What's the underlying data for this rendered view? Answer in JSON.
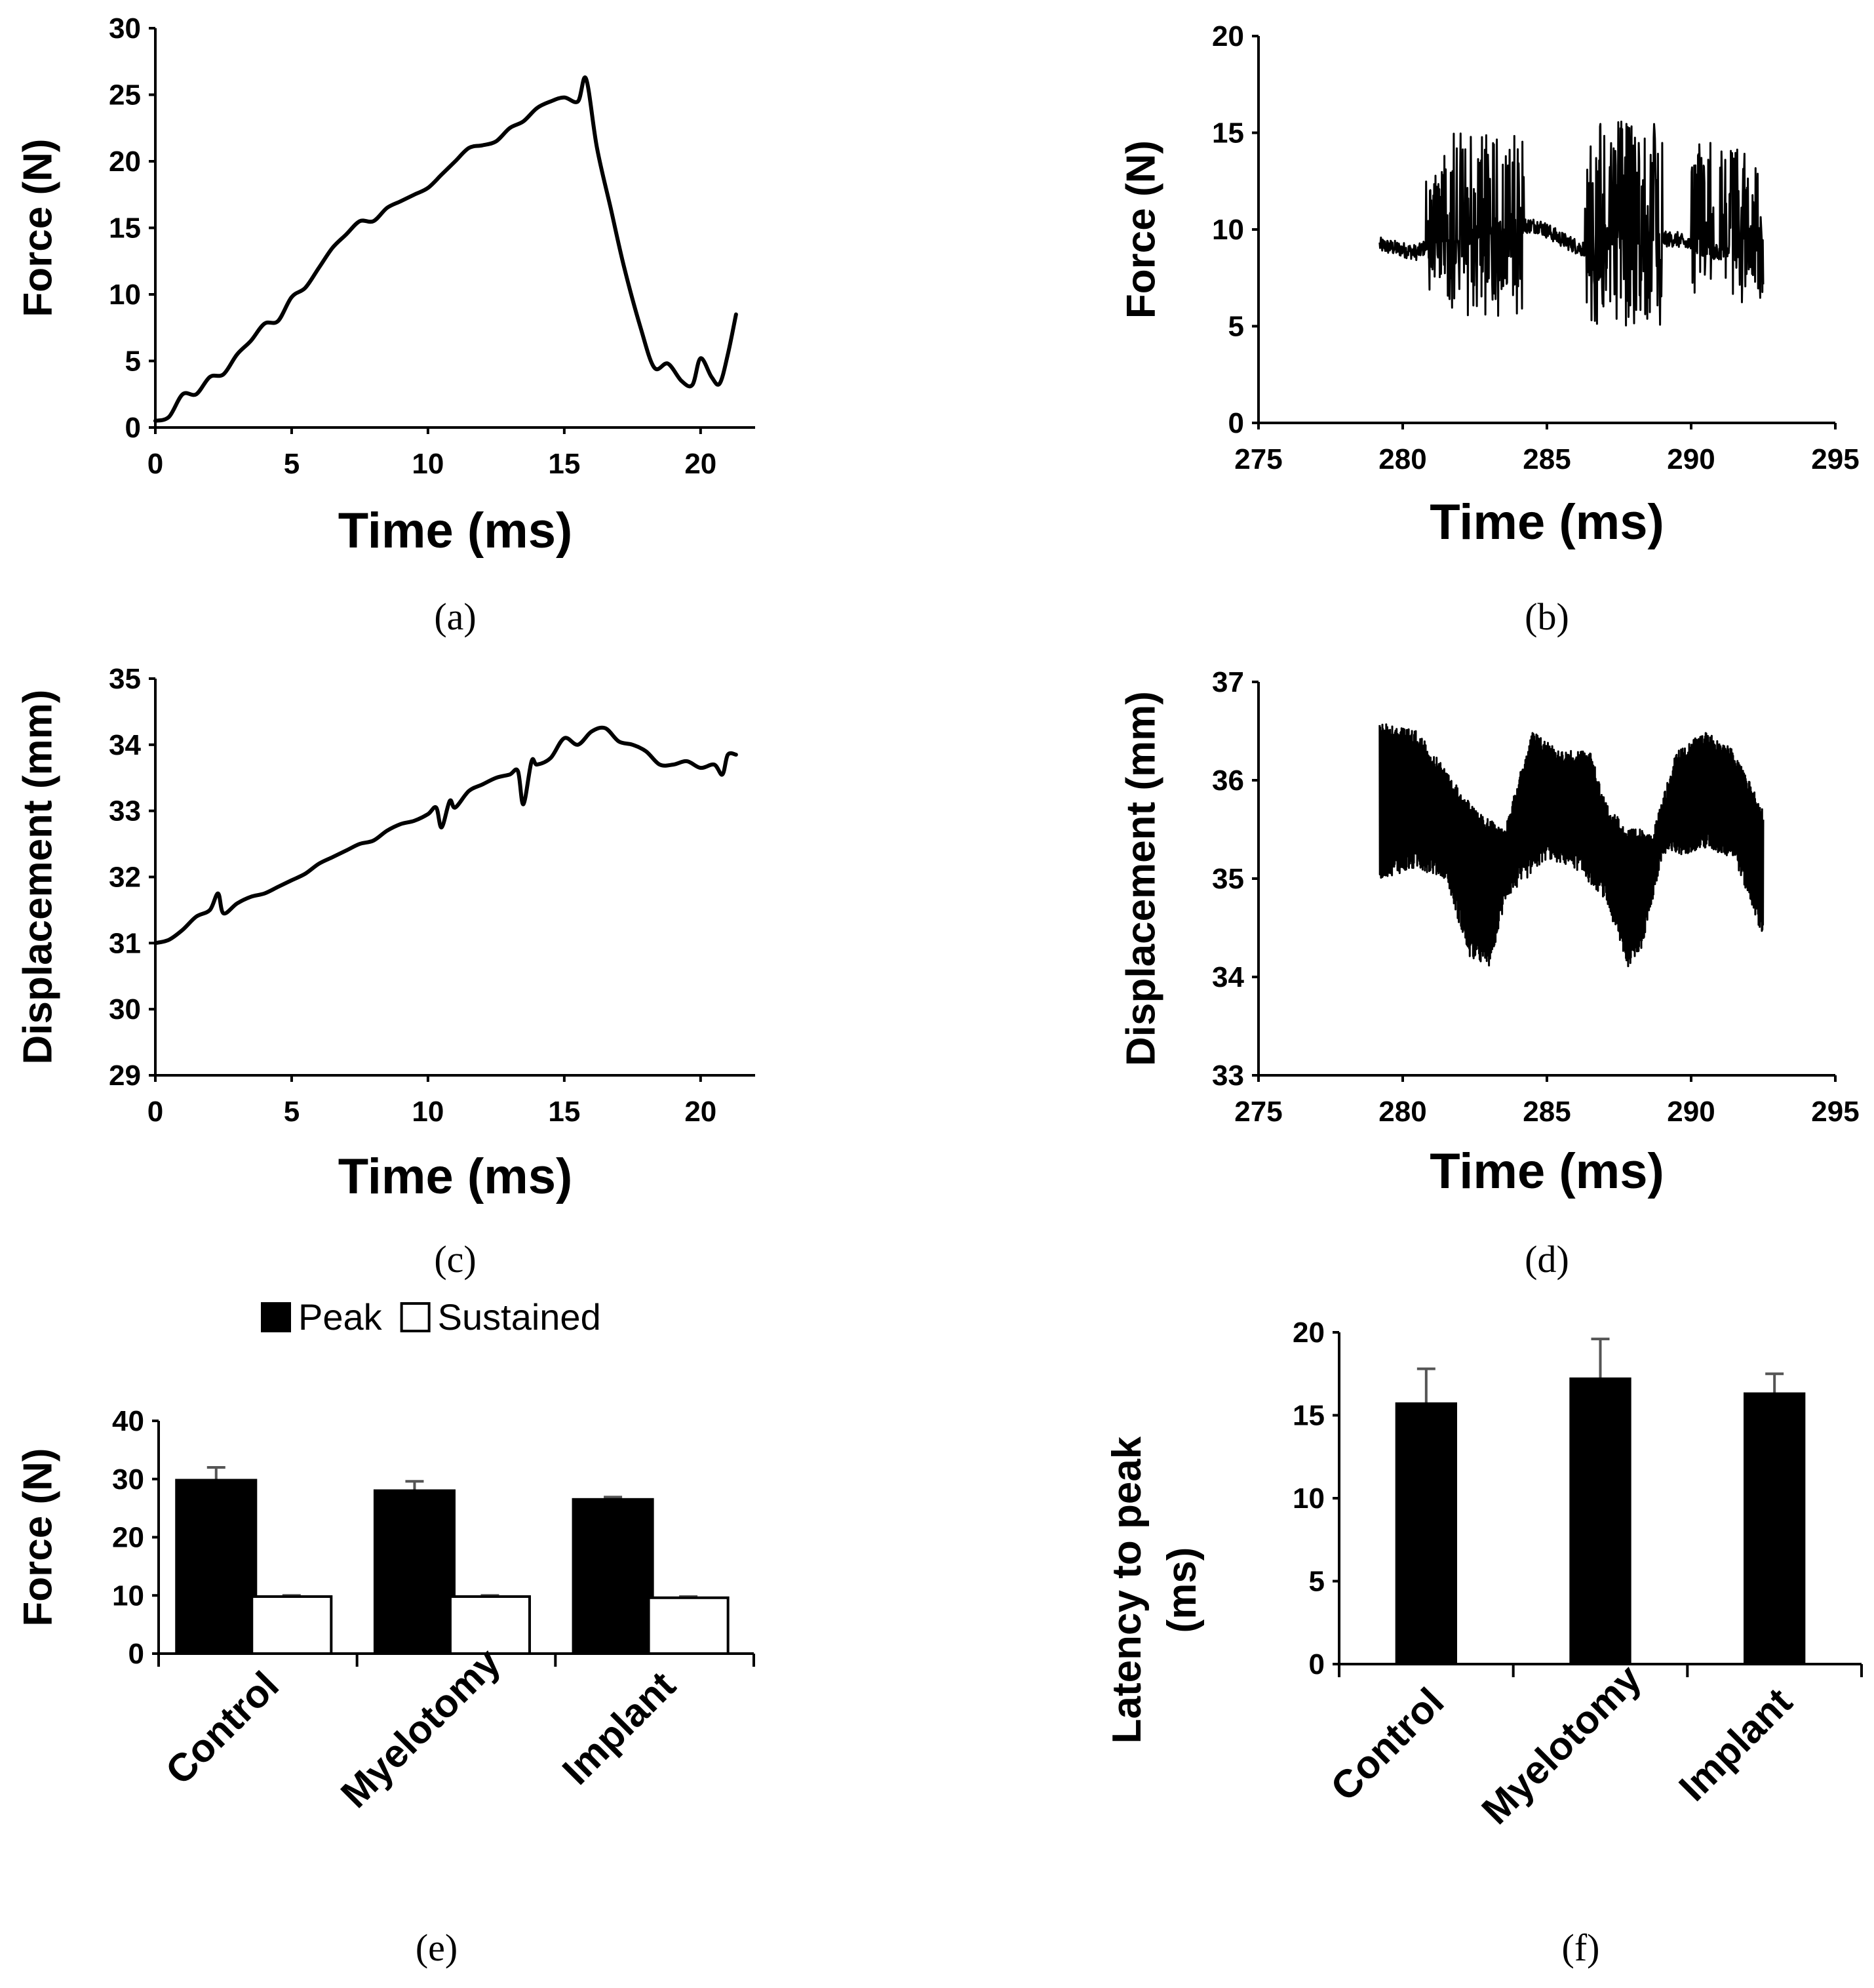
{
  "chart_data": [
    {
      "id": "a",
      "type": "line",
      "caption": "(a)",
      "ylabel": "Force (N)",
      "xlabel": "Time (ms)",
      "xlim": [
        0,
        22
      ],
      "ylim": [
        0,
        30
      ],
      "xticks": [
        "0",
        "5",
        "10",
        "15",
        "20"
      ],
      "yticks": [
        "0",
        "5",
        "10",
        "15",
        "20",
        "25",
        "30"
      ],
      "series": [
        {
          "name": "Force",
          "x": [
            0,
            0.5,
            1,
            1.5,
            2,
            2.5,
            3,
            3.5,
            4,
            4.5,
            5,
            5.5,
            6,
            6.5,
            7,
            7.5,
            8,
            8.5,
            9,
            9.5,
            10,
            10.5,
            11,
            11.5,
            12,
            12.5,
            13,
            13.5,
            14,
            14.5,
            15,
            15.5,
            15.8,
            16.2,
            16.7,
            17.2,
            17.8,
            18.3,
            18.8,
            19.3,
            19.7,
            20,
            20.4,
            20.7,
            21,
            21.3
          ],
          "y": [
            0.5,
            0.8,
            2.5,
            2.5,
            3.8,
            4,
            5.5,
            6.5,
            7.8,
            8,
            9.8,
            10.5,
            12,
            13.5,
            14.5,
            15.5,
            15.5,
            16.5,
            17,
            17.5,
            18,
            19,
            20,
            21,
            21.2,
            21.5,
            22.5,
            23,
            24,
            24.5,
            24.8,
            24.5,
            26.2,
            21,
            16.5,
            12,
            7.5,
            4.5,
            4.8,
            3.5,
            3.2,
            5.2,
            3.8,
            3.3,
            5.5,
            8.5
          ]
        }
      ]
    },
    {
      "id": "b",
      "type": "line",
      "caption": "(b)",
      "ylabel": "Force (N)",
      "xlabel": "Time (ms)",
      "xlim": [
        275,
        295
      ],
      "ylim": [
        0,
        20
      ],
      "xticks": [
        "275",
        "280",
        "285",
        "290",
        "295"
      ],
      "yticks": [
        "0",
        "5",
        "10",
        "15",
        "20"
      ],
      "trace": {
        "x_start": 279.2,
        "x_end": 292.5,
        "baseline": [
          [
            279.2,
            9.2
          ],
          [
            280.5,
            8.8
          ],
          [
            281.2,
            9.5
          ],
          [
            282.5,
            9.8
          ],
          [
            284,
            10.2
          ],
          [
            284.7,
            10.2
          ],
          [
            285.5,
            9.5
          ],
          [
            286.2,
            9.0
          ],
          [
            287.5,
            9.5
          ],
          [
            289.5,
            9.5
          ],
          [
            290.2,
            9.0
          ],
          [
            291,
            8.8
          ],
          [
            292.5,
            9.5
          ]
        ],
        "bursts": [
          [
            280.8,
            281.4,
            13.2,
            6.5
          ],
          [
            281.4,
            284.2,
            15.0,
            5.5
          ],
          [
            286.3,
            289.0,
            15.8,
            5.0
          ],
          [
            290.0,
            290.8,
            14.5,
            6.5
          ],
          [
            291.0,
            292.5,
            14.2,
            6.2
          ]
        ],
        "y_range": [
          5.0,
          15.8
        ]
      }
    },
    {
      "id": "c",
      "type": "line",
      "caption": "(c)",
      "ylabel": "Displacement (mm)",
      "xlabel": "Time (ms)",
      "xlim": [
        0,
        22
      ],
      "ylim": [
        29,
        35
      ],
      "xticks": [
        "0",
        "5",
        "10",
        "15",
        "20"
      ],
      "yticks": [
        "29",
        "30",
        "31",
        "32",
        "33",
        "34",
        "35"
      ],
      "series": [
        {
          "name": "Displacement",
          "x": [
            0,
            0.5,
            1,
            1.5,
            2,
            2.3,
            2.5,
            3,
            3.5,
            4,
            4.5,
            5,
            5.5,
            6,
            6.5,
            7,
            7.5,
            8,
            8.5,
            9,
            9.5,
            10,
            10.3,
            10.5,
            10.8,
            11,
            11.5,
            12,
            12.5,
            13,
            13.3,
            13.5,
            13.8,
            14,
            14.5,
            15,
            15.5,
            16,
            16.5,
            17,
            17.5,
            18,
            18.5,
            19,
            19.5,
            20,
            20.5,
            20.8,
            21,
            21.3
          ],
          "y": [
            31.0,
            31.05,
            31.2,
            31.4,
            31.5,
            31.75,
            31.45,
            31.6,
            31.7,
            31.75,
            31.85,
            31.95,
            32.05,
            32.2,
            32.3,
            32.4,
            32.5,
            32.55,
            32.7,
            32.8,
            32.85,
            32.95,
            33.05,
            32.75,
            33.15,
            33.05,
            33.3,
            33.4,
            33.5,
            33.55,
            33.6,
            33.1,
            33.75,
            33.7,
            33.8,
            34.1,
            34.0,
            34.2,
            34.25,
            34.05,
            34.0,
            33.9,
            33.7,
            33.7,
            33.75,
            33.65,
            33.7,
            33.55,
            33.85,
            33.85
          ]
        }
      ]
    },
    {
      "id": "d",
      "type": "line",
      "caption": "(d)",
      "ylabel": "Displacement (mm)",
      "xlabel": "Time (ms)",
      "xlim": [
        275,
        295
      ],
      "ylim": [
        33,
        37
      ],
      "xticks": [
        "275",
        "280",
        "285",
        "290",
        "295"
      ],
      "yticks": [
        "33",
        "34",
        "35",
        "36",
        "37"
      ],
      "trace": {
        "x_start": 279.2,
        "x_end": 292.5,
        "envelope_top": [
          [
            279.2,
            36.6
          ],
          [
            280.5,
            36.5
          ],
          [
            281.5,
            36.1
          ],
          [
            282.5,
            35.7
          ],
          [
            283.5,
            35.5
          ],
          [
            284.5,
            36.5
          ],
          [
            285.5,
            36.3
          ],
          [
            286.5,
            36.3
          ],
          [
            287.0,
            35.8
          ],
          [
            287.8,
            35.5
          ],
          [
            288.7,
            35.5
          ],
          [
            289.5,
            36.3
          ],
          [
            290.5,
            36.5
          ],
          [
            291.5,
            36.3
          ],
          [
            292.5,
            35.7
          ]
        ],
        "envelope_bottom": [
          [
            279.2,
            35.0
          ],
          [
            280.5,
            35.1
          ],
          [
            281.5,
            35.0
          ],
          [
            282.3,
            34.2
          ],
          [
            283.0,
            34.1
          ],
          [
            283.6,
            34.8
          ],
          [
            285.0,
            35.2
          ],
          [
            286.0,
            35.1
          ],
          [
            287.0,
            34.8
          ],
          [
            287.8,
            34.1
          ],
          [
            288.3,
            34.3
          ],
          [
            289.0,
            35.2
          ],
          [
            290.5,
            35.3
          ],
          [
            291.5,
            35.2
          ],
          [
            292.5,
            34.4
          ]
        ],
        "y_range": [
          34.1,
          36.6
        ]
      }
    },
    {
      "id": "e",
      "type": "bar",
      "caption": "(e)",
      "ylabel": "Force (N)",
      "categories": [
        "Control",
        "Myelotomy",
        "Implant"
      ],
      "ylim": [
        0,
        40
      ],
      "yticks": [
        "0",
        "10",
        "20",
        "30",
        "40"
      ],
      "legend": "top",
      "series": [
        {
          "name": "Peak",
          "fill": "#000000",
          "values": [
            29.8,
            28.0,
            26.5
          ],
          "errors": [
            2.2,
            1.6,
            0.4
          ]
        },
        {
          "name": "Sustained",
          "fill": "#ffffff",
          "values": [
            9.8,
            9.8,
            9.6
          ],
          "errors": [
            0.2,
            0.2,
            0.2
          ]
        }
      ]
    },
    {
      "id": "f",
      "type": "bar",
      "caption": "(f)",
      "ylabel": "Latency to peak (ms)",
      "ylabel_lines": [
        "Latency to peak",
        "(ms)"
      ],
      "categories": [
        "Control",
        "Myelotomy",
        "Implant"
      ],
      "ylim": [
        0,
        20
      ],
      "yticks": [
        "0",
        "5",
        "10",
        "15",
        "20"
      ],
      "series": [
        {
          "name": "Latency",
          "fill": "#000000",
          "values": [
            15.7,
            17.2,
            16.3
          ],
          "errors": [
            2.1,
            2.4,
            1.2
          ]
        }
      ]
    }
  ]
}
